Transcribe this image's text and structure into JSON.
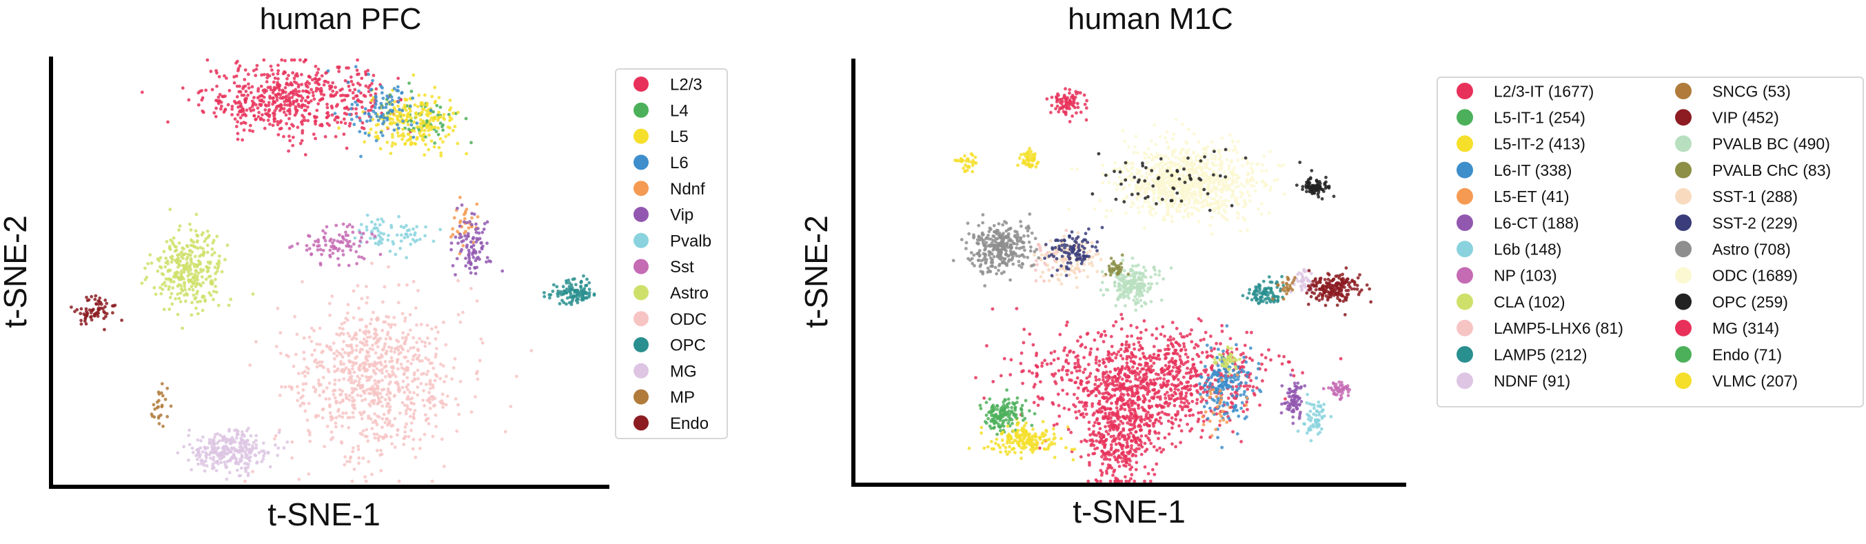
{
  "chart_data": [
    {
      "type": "scatter",
      "title": "human PFC",
      "xlabel": "t-SNE-1",
      "ylabel": "t-SNE-2",
      "legend_placement": "right, outside plot",
      "axes_ticks": "none",
      "grid": false,
      "series": [
        {
          "name": "L2/3",
          "color": "#e8315a",
          "clusters": [
            {
              "x": -5,
              "y": 64,
              "sx": 14,
              "sy": 6,
              "n": 520
            },
            {
              "x": 20,
              "y": 66,
              "sx": 6,
              "sy": 4,
              "n": 40
            }
          ]
        },
        {
          "name": "L4",
          "color": "#4cb05a",
          "clusters": [
            {
              "x": 40,
              "y": 58,
              "sx": 6,
              "sy": 4,
              "n": 60
            }
          ]
        },
        {
          "name": "L5",
          "color": "#f5df2a",
          "clusters": [
            {
              "x": 38,
              "y": 56,
              "sx": 8,
              "sy": 5,
              "n": 220
            }
          ]
        },
        {
          "name": "L6",
          "color": "#3d8ecb",
          "clusters": [
            {
              "x": 28,
              "y": 60,
              "sx": 6,
              "sy": 5,
              "n": 90
            }
          ]
        },
        {
          "name": "Ndnf",
          "color": "#f59a52",
          "clusters": [
            {
              "x": 55,
              "y": 22,
              "sx": 3,
              "sy": 4,
              "n": 30
            }
          ]
        },
        {
          "name": "Vip",
          "color": "#9258b0",
          "clusters": [
            {
              "x": 58,
              "y": 16,
              "sx": 3,
              "sy": 5,
              "n": 90
            }
          ]
        },
        {
          "name": "Pvalb",
          "color": "#8ad3de",
          "clusters": [
            {
              "x": 30,
              "y": 20,
              "sx": 7,
              "sy": 3,
              "n": 70
            }
          ]
        },
        {
          "name": "Sst",
          "color": "#c56bb4",
          "clusters": [
            {
              "x": 12,
              "y": 16,
              "sx": 7,
              "sy": 3,
              "n": 90
            }
          ]
        },
        {
          "name": "Astro",
          "color": "#cfe06a",
          "clusters": [
            {
              "x": -38,
              "y": 8,
              "sx": 6,
              "sy": 6,
              "n": 300
            }
          ]
        },
        {
          "name": "ODC",
          "color": "#f7c4c4",
          "clusters": [
            {
              "x": 25,
              "y": -28,
              "sx": 14,
              "sy": 13,
              "n": 800
            }
          ]
        },
        {
          "name": "OPC",
          "color": "#2a8f8f",
          "clusters": [
            {
              "x": 93,
              "y": 0,
              "sx": 4,
              "sy": 2,
              "n": 110
            }
          ]
        },
        {
          "name": "MG",
          "color": "#ddc5e3",
          "clusters": [
            {
              "x": -25,
              "y": -52,
              "sx": 7,
              "sy": 3.5,
              "n": 280
            }
          ]
        },
        {
          "name": "MP",
          "color": "#b07b3b",
          "clusters": [
            {
              "x": -48,
              "y": -37,
              "sx": 1.5,
              "sy": 3,
              "n": 25
            }
          ]
        },
        {
          "name": "Endo",
          "color": "#8c1c22",
          "clusters": [
            {
              "x": -70,
              "y": -5,
              "sx": 3.5,
              "sy": 2,
              "n": 70
            }
          ]
        }
      ]
    },
    {
      "type": "scatter",
      "title": "human M1C",
      "xlabel": "t-SNE-1",
      "ylabel": "t-SNE-2",
      "legend_placement": "right, outside plot, two columns",
      "axes_ticks": "none",
      "grid": false,
      "series": [
        {
          "name": "L2/3-IT (1677)",
          "color": "#e8315a",
          "clusters": [
            {
              "x": 15,
              "y": -28,
              "sx": 20,
              "sy": 8,
              "n": 900
            },
            {
              "x": 5,
              "y": -48,
              "sx": 6,
              "sy": 8,
              "n": 300
            },
            {
              "x": -12,
              "y": 63,
              "sx": 3,
              "sy": 2.5,
              "n": 80
            }
          ]
        },
        {
          "name": "L5-IT-1 (254)",
          "color": "#4cb05a",
          "clusters": [
            {
              "x": -35,
              "y": -40,
              "sx": 3,
              "sy": 2.5,
              "n": 110
            }
          ]
        },
        {
          "name": "L5-IT-2 (413)",
          "color": "#f5df2a",
          "clusters": [
            {
              "x": -26,
              "y": -48,
              "sx": 6,
              "sy": 2.5,
              "n": 170
            },
            {
              "x": -46,
              "y": 43,
              "sx": 2,
              "sy": 2,
              "n": 30
            }
          ]
        },
        {
          "name": "L6-IT (338)",
          "color": "#3d8ecb",
          "clusters": [
            {
              "x": 42,
              "y": -30,
              "sx": 4,
              "sy": 6,
              "n": 180
            }
          ]
        },
        {
          "name": "L5-ET (41)",
          "color": "#f59a52",
          "clusters": [
            {
              "x": 40,
              "y": -37,
              "sx": 4,
              "sy": 5,
              "n": 30
            }
          ]
        },
        {
          "name": "L6-CT (188)",
          "color": "#9258b0",
          "clusters": [
            {
              "x": 65,
              "y": -35,
              "sx": 2,
              "sy": 3,
              "n": 80
            }
          ]
        },
        {
          "name": "L6b (148)",
          "color": "#8ad3de",
          "clusters": [
            {
              "x": 72,
              "y": -41,
              "sx": 2,
              "sy": 3,
              "n": 60
            }
          ]
        },
        {
          "name": "NP (103)",
          "color": "#c56bb4",
          "clusters": [
            {
              "x": 80,
              "y": -32,
              "sx": 2,
              "sy": 1.5,
              "n": 45
            }
          ]
        },
        {
          "name": "CLA (102)",
          "color": "#cfe06a",
          "clusters": [
            {
              "x": 42,
              "y": -22,
              "sx": 2,
              "sy": 2,
              "n": 45
            }
          ]
        },
        {
          "name": "LAMP5-LHX6 (81)",
          "color": "#f7c4c4",
          "clusters": [
            {
              "x": -18,
              "y": 12,
              "sx": 5,
              "sy": 4,
              "n": 30
            }
          ]
        },
        {
          "name": "LAMP5 (212)",
          "color": "#2a8f8f",
          "clusters": [
            {
              "x": 55,
              "y": 0,
              "sx": 3,
              "sy": 2,
              "n": 90
            }
          ]
        },
        {
          "name": "NDNF (91)",
          "color": "#ddc5e3",
          "clusters": [
            {
              "x": 68,
              "y": 4,
              "sx": 2,
              "sy": 2,
              "n": 40
            }
          ]
        },
        {
          "name": "SNCG (53)",
          "color": "#b07b3b",
          "clusters": [
            {
              "x": 62,
              "y": 2,
              "sx": 2,
              "sy": 2,
              "n": 25
            }
          ]
        },
        {
          "name": "VIP (452)",
          "color": "#8c1c22",
          "clusters": [
            {
              "x": 78,
              "y": 2,
              "sx": 4,
              "sy": 2.5,
              "n": 190
            }
          ]
        },
        {
          "name": "PVALB BC (490)",
          "color": "#b8dfc0",
          "clusters": [
            {
              "x": 10,
              "y": 3,
              "sx": 4,
              "sy": 3,
              "n": 200
            }
          ]
        },
        {
          "name": "PVALB ChC (83)",
          "color": "#8c8f45",
          "clusters": [
            {
              "x": 4,
              "y": 8,
              "sx": 2,
              "sy": 1.5,
              "n": 35
            }
          ]
        },
        {
          "name": "SST-1 (288)",
          "color": "#f8dbbf",
          "clusters": [
            {
              "x": -12,
              "y": 12,
              "sx": 5,
              "sy": 3.5,
              "n": 110
            }
          ]
        },
        {
          "name": "SST-2 (229)",
          "color": "#3a3d7a",
          "clusters": [
            {
              "x": -10,
              "y": 14,
              "sx": 4,
              "sy": 3,
              "n": 100
            }
          ]
        },
        {
          "name": "Astro (708)",
          "color": "#8e8e8e",
          "clusters": [
            {
              "x": -35,
              "y": 15,
              "sx": 5,
              "sy": 4,
              "n": 300
            }
          ]
        },
        {
          "name": "ODC (1689)",
          "color": "#fbf8d2",
          "clusters": [
            {
              "x": 28,
              "y": 37,
              "sx": 12,
              "sy": 6,
              "n": 900
            }
          ]
        },
        {
          "name": "OPC (259)",
          "color": "#222222",
          "clusters": [
            {
              "x": 72,
              "y": 35,
              "sx": 2,
              "sy": 1.5,
              "n": 80
            },
            {
              "x": 25,
              "y": 38,
              "sx": 12,
              "sy": 5,
              "n": 60
            }
          ]
        },
        {
          "name": "MG (314)",
          "color": "#e8315a",
          "clusters": [
            {
              "x": 12,
              "y": -40,
              "sx": 10,
              "sy": 6,
              "n": 160
            }
          ]
        },
        {
          "name": "Endo (71)",
          "color": "#4cb05a",
          "clusters": [
            {
              "x": -30,
              "y": -38,
              "sx": 3,
              "sy": 2,
              "n": 30
            }
          ]
        },
        {
          "name": "VLMC (207)",
          "color": "#f5df2a",
          "clusters": [
            {
              "x": -25,
              "y": 44,
              "sx": 1.5,
              "sy": 1.5,
              "n": 50
            }
          ]
        }
      ]
    }
  ]
}
